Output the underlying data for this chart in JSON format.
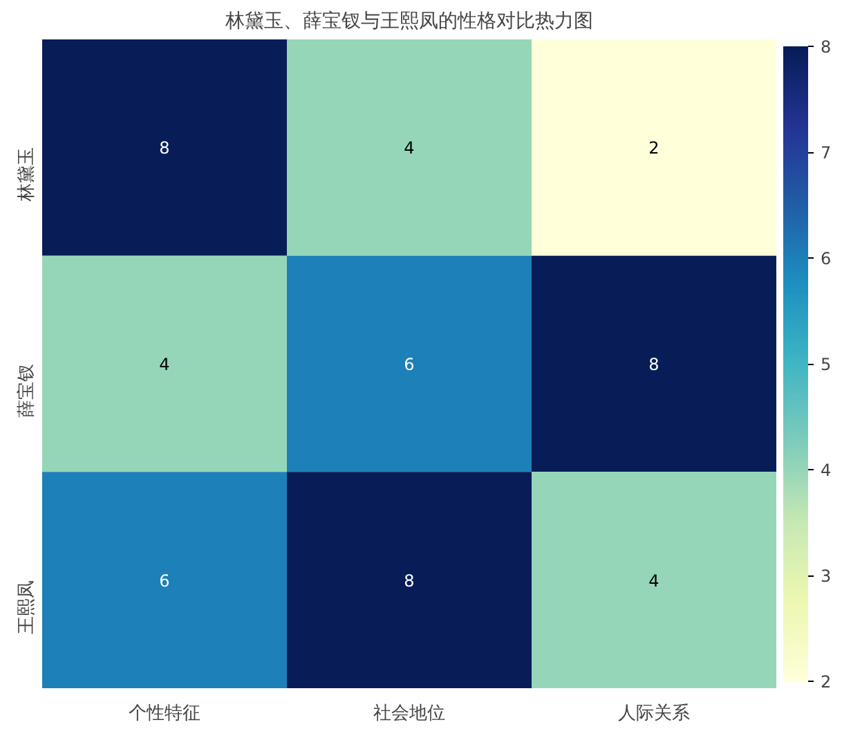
{
  "chart_data": {
    "type": "heatmap",
    "title": "林黛玉、薛宝钗与王熙凤的性格对比热力图",
    "categories": [
      "个性特征",
      "社会地位",
      "人际关系"
    ],
    "y_categories": [
      "林黛玉",
      "薛宝钗",
      "王熙凤"
    ],
    "cells": [
      [
        8,
        4,
        2
      ],
      [
        4,
        6,
        8
      ],
      [
        6,
        8,
        4
      ]
    ],
    "clim": [
      2,
      8
    ],
    "cticks": [
      2,
      3,
      4,
      5,
      6,
      7,
      8
    ],
    "data_labels": true
  }
}
